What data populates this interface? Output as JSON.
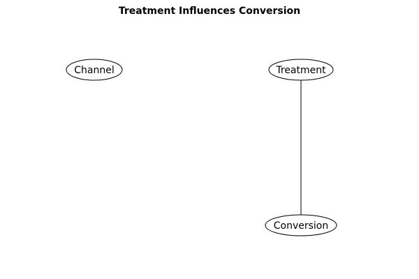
{
  "diagram": {
    "title": "Treatment Influences Conversion",
    "nodes": [
      {
        "id": "channel",
        "label": "Channel"
      },
      {
        "id": "treatment",
        "label": "Treatment"
      },
      {
        "id": "conversion",
        "label": "Conversion"
      }
    ],
    "edges": [
      {
        "from": "treatment",
        "to": "conversion",
        "directed": false
      }
    ]
  }
}
